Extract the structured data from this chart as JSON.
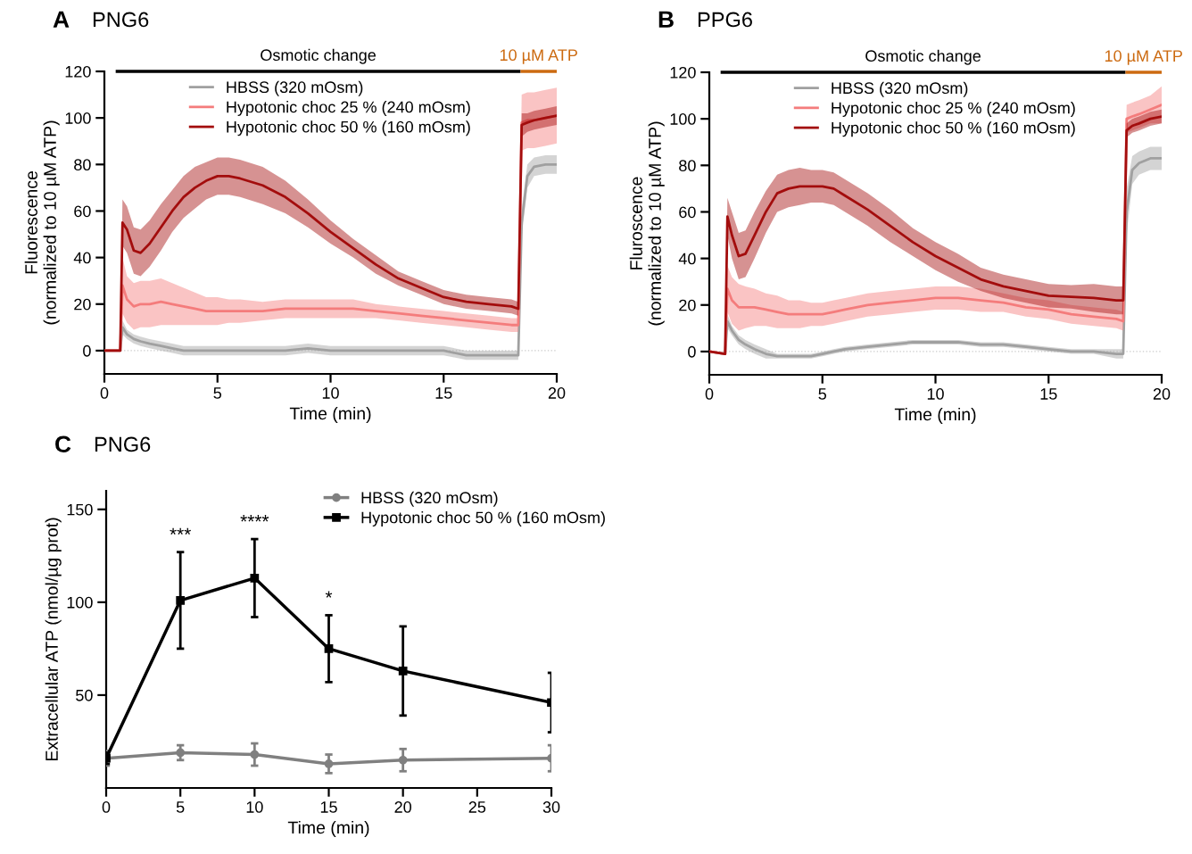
{
  "chart_data": [
    {
      "type": "line",
      "title": "PNG6",
      "xlabel": "Time (min)",
      "ylabel": "Fluorescence\n(normalized to 10 µM ATP)",
      "annotations": [
        "A",
        {
          "text": "Osmotic change",
          "x": 9.45,
          "y": 120
        },
        {
          "text": "10 µM ATP",
          "x": 19.2,
          "y": 120
        }
      ],
      "x": [
        0,
        0.7,
        0.8,
        1.0,
        1.3,
        1.6,
        2,
        2.5,
        3,
        3.5,
        4,
        4.5,
        5,
        5.5,
        6,
        7,
        8,
        9,
        10,
        11,
        12,
        13,
        14,
        15,
        16,
        17,
        18,
        18.3,
        18.45,
        18.7,
        19,
        19.5,
        20
      ],
      "series": [
        {
          "name": "HBSS (320 mOsm)",
          "color": "#a0a0a0",
          "values": [
            0,
            0,
            10,
            7,
            5,
            4,
            3,
            2,
            1,
            0,
            0,
            0,
            0,
            0,
            0,
            0,
            0,
            1,
            0,
            0,
            0,
            0,
            0,
            0,
            -2,
            -2,
            -2,
            -2,
            55,
            75,
            79,
            80,
            80
          ],
          "lower": [
            0,
            0,
            7,
            5,
            3,
            2,
            1,
            0,
            -1,
            -2,
            -2,
            -2,
            -2,
            -2,
            -2,
            -2,
            -2,
            -1,
            -2,
            -2,
            -2,
            -2,
            -2,
            -2,
            -4,
            -4,
            -4,
            -4,
            49,
            70,
            75,
            76,
            76
          ],
          "upper": [
            0,
            0,
            13,
            9,
            7,
            6,
            5,
            4,
            3,
            2,
            2,
            2,
            2,
            2,
            2,
            2,
            2,
            3,
            2,
            2,
            2,
            2,
            2,
            2,
            0,
            0,
            0,
            0,
            61,
            80,
            83,
            84,
            84
          ]
        },
        {
          "name": "Hypotonic choc 25 % (240 mOsm)",
          "color": "#f47c7c",
          "values": [
            0,
            0,
            28,
            22,
            19,
            20,
            20,
            21,
            20,
            19,
            18,
            17,
            17,
            17,
            17,
            17,
            18,
            18,
            18,
            18,
            17,
            16,
            15,
            14,
            13,
            12,
            11,
            11,
            98,
            99,
            99,
            100,
            101
          ],
          "lower": [
            0,
            0,
            16,
            12,
            9,
            10,
            10,
            11,
            11,
            11,
            11,
            11,
            11,
            12,
            12,
            13,
            14,
            14,
            14,
            14,
            14,
            13,
            12,
            11,
            10,
            9,
            8,
            8,
            86,
            87,
            87,
            88,
            89
          ],
          "upper": [
            0,
            0,
            40,
            32,
            29,
            30,
            30,
            31,
            29,
            27,
            25,
            23,
            23,
            22,
            22,
            21,
            22,
            22,
            22,
            22,
            20,
            19,
            18,
            17,
            16,
            15,
            14,
            14,
            110,
            111,
            111,
            112,
            113
          ]
        },
        {
          "name": "Hypotonic choc 50 % (160 mOsm)",
          "color": "#a30d0d",
          "values": [
            0,
            0,
            55,
            52,
            43,
            42,
            46,
            53,
            60,
            66,
            70,
            73,
            75,
            75,
            74,
            71,
            66,
            59,
            51,
            44,
            37,
            31,
            27,
            23,
            21,
            20,
            19,
            18,
            97,
            98,
            99,
            100,
            101
          ],
          "lower": [
            0,
            0,
            45,
            42,
            33,
            32,
            36,
            43,
            51,
            57,
            61,
            65,
            67,
            67,
            66,
            63,
            59,
            53,
            46,
            40,
            33,
            28,
            24,
            20,
            18,
            17,
            16,
            15,
            92,
            94,
            95,
            96,
            97
          ],
          "upper": [
            0,
            0,
            65,
            62,
            53,
            52,
            56,
            63,
            69,
            75,
            79,
            81,
            83,
            83,
            82,
            79,
            73,
            65,
            56,
            48,
            41,
            34,
            30,
            26,
            24,
            23,
            22,
            21,
            102,
            102,
            103,
            104,
            105
          ]
        },
        {
          "color": "#000000",
          "x": [
            0.5,
            18.4
          ],
          "values": [
            120,
            120
          ]
        },
        {
          "color": "#cc6a10",
          "x": [
            18.4,
            20
          ],
          "values": [
            120,
            120
          ]
        }
      ],
      "xlim": [
        0,
        20
      ],
      "xticks": [
        0,
        5,
        10,
        15,
        20
      ],
      "ylim": [
        -10,
        120
      ],
      "yticks": [
        0,
        20,
        40,
        60,
        80,
        100,
        120
      ],
      "ref_lines": [
        {
          "axis": "y",
          "value": 0,
          "color": "#cccccc",
          "line_style": "dotted"
        }
      ],
      "legend": "top",
      "grid": false,
      "marker": "none"
    },
    {
      "type": "line",
      "title": "PPG6",
      "xlabel": "Time (min)",
      "ylabel": "Fluroscence\n(normalized to 10 µM ATP)",
      "annotations": [
        "B",
        {
          "text": "Osmotic change",
          "x": 9.45,
          "y": 120
        },
        {
          "text": "10 µM ATP",
          "x": 19.2,
          "y": 120
        }
      ],
      "x": [
        0,
        0.7,
        0.8,
        1.0,
        1.3,
        1.6,
        2,
        2.5,
        3,
        3.5,
        4,
        4.5,
        5,
        5.5,
        6,
        7,
        8,
        9,
        10,
        11,
        12,
        13,
        14,
        15,
        16,
        17,
        18,
        18.3,
        18.45,
        18.7,
        19,
        19.5,
        20
      ],
      "series": [
        {
          "name": "HBSS (320 mOsm)",
          "color": "#a0a0a0",
          "values": [
            0,
            -1,
            13,
            9,
            5,
            3,
            1,
            -1,
            -2,
            -2,
            -2,
            -2,
            -1,
            0,
            1,
            2,
            3,
            4,
            4,
            4,
            3,
            3,
            2,
            1,
            0,
            0,
            -1,
            -1,
            60,
            78,
            81,
            83,
            83
          ],
          "lower": [
            0,
            -1,
            10,
            7,
            3,
            1,
            -1,
            -3,
            -3,
            -3,
            -3,
            -3,
            -2,
            -1,
            0,
            1,
            2,
            3,
            3,
            3,
            2,
            2,
            1,
            0,
            -1,
            -1,
            -3,
            -3,
            50,
            72,
            76,
            78,
            78
          ],
          "upper": [
            0,
            -1,
            16,
            11,
            7,
            5,
            3,
            1,
            -1,
            -1,
            -1,
            -1,
            0,
            1,
            2,
            3,
            4,
            5,
            5,
            5,
            4,
            4,
            3,
            2,
            1,
            1,
            1,
            1,
            70,
            84,
            86,
            88,
            88
          ]
        },
        {
          "name": "Hypotonic choc 25 % (240 mOsm)",
          "color": "#f47c7c",
          "values": [
            0,
            -1,
            27,
            22,
            19,
            19,
            19,
            18,
            17,
            16,
            16,
            16,
            16,
            17,
            18,
            20,
            21,
            22,
            23,
            23,
            22,
            21,
            19,
            18,
            16,
            15,
            14,
            13,
            100,
            101,
            102,
            104,
            106
          ],
          "lower": [
            0,
            -1,
            17,
            12,
            9,
            10,
            11,
            11,
            10,
            10,
            10,
            11,
            11,
            12,
            13,
            15,
            16,
            17,
            18,
            18,
            17,
            17,
            15,
            14,
            12,
            11,
            10,
            9,
            94,
            95,
            96,
            98,
            98
          ],
          "upper": [
            0,
            -1,
            37,
            32,
            29,
            28,
            27,
            25,
            24,
            22,
            22,
            21,
            21,
            22,
            23,
            25,
            26,
            27,
            28,
            28,
            27,
            25,
            23,
            22,
            20,
            19,
            18,
            17,
            106,
            107,
            108,
            110,
            114
          ]
        },
        {
          "name": "Hypotonic choc 50 % (160 mOsm)",
          "color": "#a30d0d",
          "values": [
            0,
            -1,
            58,
            50,
            41,
            42,
            50,
            60,
            68,
            70,
            71,
            71,
            71,
            70,
            67,
            61,
            54,
            47,
            41,
            36,
            31,
            28,
            26,
            24,
            23.5,
            23,
            22,
            22,
            95,
            97,
            98,
            100,
            101
          ],
          "lower": [
            0,
            -1,
            50,
            40,
            31,
            32,
            40,
            51,
            60,
            62,
            63,
            64,
            64,
            63,
            60,
            54,
            47,
            41,
            35,
            30,
            26,
            23,
            21,
            19,
            18.5,
            17,
            16,
            16,
            92,
            94,
            95,
            97,
            98
          ],
          "upper": [
            0,
            -1,
            66,
            60,
            51,
            52,
            60,
            69,
            76,
            78,
            79,
            78,
            78,
            77,
            74,
            68,
            61,
            53,
            47,
            42,
            36,
            33,
            31,
            29,
            28.5,
            29,
            28,
            28,
            98,
            100,
            101,
            103,
            104
          ]
        },
        {
          "color": "#000000",
          "x": [
            0.5,
            18.4
          ],
          "values": [
            120,
            120
          ]
        },
        {
          "color": "#cc6a10",
          "x": [
            18.4,
            20
          ],
          "values": [
            120,
            120
          ]
        }
      ],
      "xlim": [
        0,
        20
      ],
      "xticks": [
        0,
        5,
        10,
        15,
        20
      ],
      "ylim": [
        -10,
        120
      ],
      "yticks": [
        0,
        20,
        40,
        60,
        80,
        100,
        120
      ],
      "ref_lines": [
        {
          "axis": "y",
          "value": 0,
          "color": "#cccccc",
          "line_style": "dotted"
        }
      ],
      "legend": "top",
      "grid": false,
      "marker": "none"
    },
    {
      "type": "line",
      "title": "PNG6",
      "xlabel": "Time (min)",
      "ylabel": "Extracellular ATP (nmol/µg prot)",
      "annotations": [
        "C",
        {
          "text": "***",
          "x": 5,
          "y": 127
        },
        {
          "text": "****",
          "x": 10,
          "y": 134
        },
        {
          "text": "*",
          "x": 15,
          "y": 93
        }
      ],
      "x": [
        0,
        5,
        10,
        15,
        20,
        30
      ],
      "series": [
        {
          "name": "HBSS (320 mOsm)",
          "color": "#808080",
          "marker": "circle",
          "values": [
            16,
            19,
            18,
            13,
            15,
            16
          ],
          "errors": [
            4,
            4,
            6,
            5,
            6,
            7
          ]
        },
        {
          "name": "Hypotonic choc 50 % (160 mOsm)",
          "color": "#000000",
          "marker": "square",
          "values": [
            16,
            101,
            113,
            75,
            63,
            46
          ],
          "errors": [
            3,
            26,
            21,
            18,
            24,
            16
          ]
        }
      ],
      "xlim": [
        0,
        30
      ],
      "xticks": [
        0,
        5,
        10,
        15,
        20,
        25,
        30
      ],
      "ylim": [
        0,
        160
      ],
      "yticks": [
        50,
        100,
        150
      ],
      "legend": "top right",
      "grid": false
    }
  ]
}
